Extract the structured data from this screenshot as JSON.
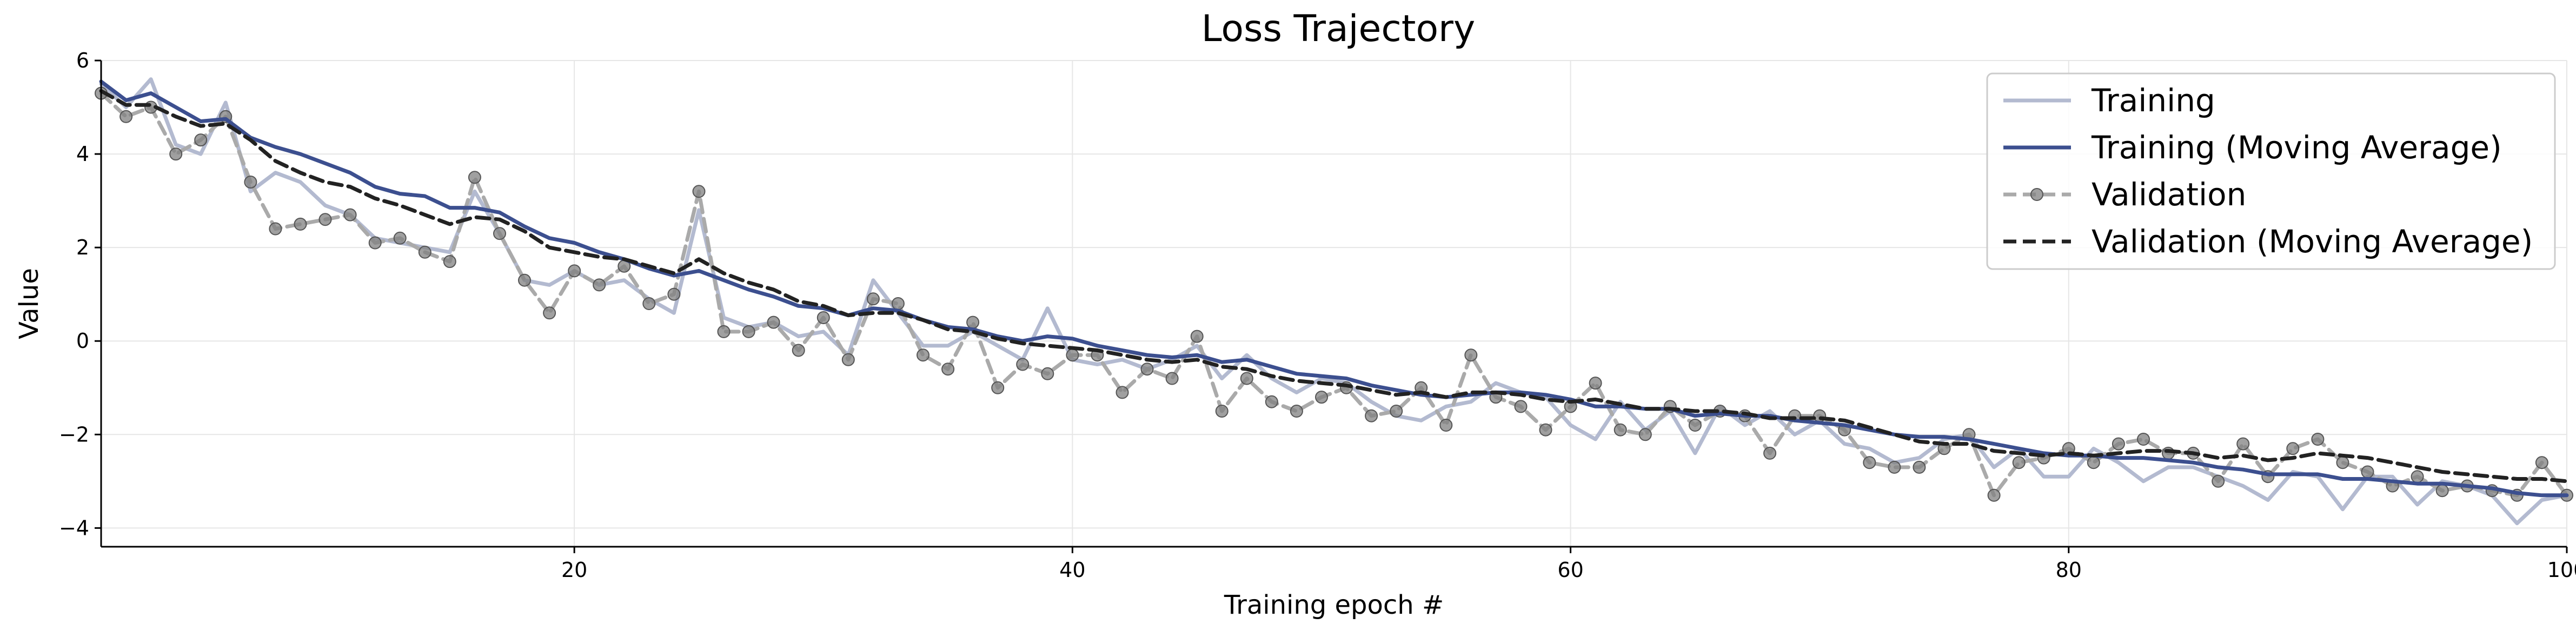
{
  "chart_data": {
    "type": "line",
    "title": "Loss Trajectory",
    "xlabel": "Training epoch #",
    "ylabel": "Value",
    "xlim": [
      1,
      100
    ],
    "ylim": [
      -4.4,
      6.0
    ],
    "xticks": [
      20,
      40,
      60,
      80,
      100
    ],
    "yticks": [
      -4,
      -2,
      0,
      2,
      4,
      6
    ],
    "grid": true,
    "legend_position": "top-right",
    "series": [
      {
        "name": "Training",
        "color": "#b3bad0",
        "style": "solid",
        "x": [
          1,
          2,
          3,
          4,
          5,
          6,
          7,
          8,
          9,
          10,
          11,
          12,
          13,
          14,
          15,
          16,
          17,
          18,
          19,
          20,
          21,
          22,
          23,
          24,
          25,
          26,
          27,
          28,
          29,
          30,
          31,
          32,
          33,
          34,
          35,
          36,
          37,
          38,
          39,
          40,
          41,
          42,
          43,
          44,
          45,
          46,
          47,
          48,
          49,
          50,
          51,
          52,
          53,
          54,
          55,
          56,
          57,
          58,
          59,
          60,
          61,
          62,
          63,
          64,
          65,
          66,
          67,
          68,
          69,
          70,
          71,
          72,
          73,
          74,
          75,
          76,
          77,
          78,
          79,
          80,
          81,
          82,
          83,
          84,
          85,
          86,
          87,
          88,
          89,
          90,
          91,
          92,
          93,
          94,
          95,
          96,
          97,
          98,
          99,
          100
        ],
        "values": [
          5.5,
          5.0,
          5.6,
          4.2,
          4.0,
          5.1,
          3.2,
          3.6,
          3.4,
          2.9,
          2.7,
          2.2,
          2.1,
          2.0,
          1.9,
          3.2,
          2.3,
          1.3,
          1.2,
          1.5,
          1.2,
          1.3,
          0.9,
          0.6,
          2.8,
          0.5,
          0.3,
          0.4,
          0.1,
          0.2,
          -0.3,
          1.3,
          0.6,
          -0.1,
          -0.1,
          0.2,
          -0.1,
          -0.4,
          0.7,
          -0.4,
          -0.5,
          -0.4,
          -0.6,
          -0.4,
          -0.1,
          -0.8,
          -0.3,
          -0.8,
          -1.1,
          -0.8,
          -0.9,
          -1.3,
          -1.6,
          -1.7,
          -1.4,
          -1.3,
          -0.9,
          -1.1,
          -1.2,
          -1.8,
          -2.1,
          -1.3,
          -1.9,
          -1.5,
          -2.4,
          -1.4,
          -1.8,
          -1.5,
          -2.0,
          -1.7,
          -2.2,
          -2.3,
          -2.6,
          -2.5,
          -2.1,
          -2.0,
          -2.7,
          -2.3,
          -2.9,
          -2.9,
          -2.3,
          -2.6,
          -3.0,
          -2.7,
          -2.7,
          -2.9,
          -3.1,
          -3.4,
          -2.8,
          -2.9,
          -3.6,
          -2.9,
          -2.9,
          -3.5,
          -3.0,
          -3.1,
          -3.3,
          -3.9,
          -3.4,
          -3.3
        ]
      },
      {
        "name": "Training (Moving Average)",
        "color": "#3c4f8f",
        "style": "solid",
        "x": [
          1,
          2,
          3,
          4,
          5,
          6,
          7,
          8,
          9,
          10,
          11,
          12,
          13,
          14,
          15,
          16,
          17,
          18,
          19,
          20,
          21,
          22,
          23,
          24,
          25,
          26,
          27,
          28,
          29,
          30,
          31,
          32,
          33,
          34,
          35,
          36,
          37,
          38,
          39,
          40,
          41,
          42,
          43,
          44,
          45,
          46,
          47,
          48,
          49,
          50,
          51,
          52,
          53,
          54,
          55,
          56,
          57,
          58,
          59,
          60,
          61,
          62,
          63,
          64,
          65,
          66,
          67,
          68,
          69,
          70,
          71,
          72,
          73,
          74,
          75,
          76,
          77,
          78,
          79,
          80,
          81,
          82,
          83,
          84,
          85,
          86,
          87,
          88,
          89,
          90,
          91,
          92,
          93,
          94,
          95,
          96,
          97,
          98,
          99,
          100
        ],
        "values": [
          5.55,
          5.15,
          5.3,
          5.0,
          4.7,
          4.75,
          4.35,
          4.15,
          4.0,
          3.8,
          3.6,
          3.3,
          3.15,
          3.1,
          2.85,
          2.85,
          2.75,
          2.45,
          2.2,
          2.1,
          1.9,
          1.75,
          1.55,
          1.4,
          1.5,
          1.3,
          1.1,
          0.95,
          0.75,
          0.7,
          0.55,
          0.7,
          0.65,
          0.45,
          0.3,
          0.25,
          0.1,
          0.0,
          0.1,
          0.05,
          -0.1,
          -0.2,
          -0.3,
          -0.35,
          -0.3,
          -0.45,
          -0.4,
          -0.55,
          -0.7,
          -0.75,
          -0.8,
          -0.95,
          -1.05,
          -1.15,
          -1.2,
          -1.15,
          -1.1,
          -1.1,
          -1.15,
          -1.25,
          -1.4,
          -1.4,
          -1.45,
          -1.45,
          -1.6,
          -1.55,
          -1.6,
          -1.6,
          -1.7,
          -1.75,
          -1.8,
          -1.9,
          -2.0,
          -2.05,
          -2.05,
          -2.1,
          -2.2,
          -2.3,
          -2.4,
          -2.45,
          -2.45,
          -2.5,
          -2.5,
          -2.55,
          -2.6,
          -2.7,
          -2.75,
          -2.85,
          -2.85,
          -2.85,
          -2.95,
          -2.95,
          -3.0,
          -3.05,
          -3.05,
          -3.1,
          -3.15,
          -3.25,
          -3.3,
          -3.3
        ]
      },
      {
        "name": "Validation",
        "color": "#aaaaaa",
        "marker_color": "#808080",
        "style": "dashed-markers",
        "x": [
          1,
          2,
          3,
          4,
          5,
          6,
          7,
          8,
          9,
          10,
          11,
          12,
          13,
          14,
          15,
          16,
          17,
          18,
          19,
          20,
          21,
          22,
          23,
          24,
          25,
          26,
          27,
          28,
          29,
          30,
          31,
          32,
          33,
          34,
          35,
          36,
          37,
          38,
          39,
          40,
          41,
          42,
          43,
          44,
          45,
          46,
          47,
          48,
          49,
          50,
          51,
          52,
          53,
          54,
          55,
          56,
          57,
          58,
          59,
          60,
          61,
          62,
          63,
          64,
          65,
          66,
          67,
          68,
          69,
          70,
          71,
          72,
          73,
          74,
          75,
          76,
          77,
          78,
          79,
          80,
          81,
          82,
          83,
          84,
          85,
          86,
          87,
          88,
          89,
          90,
          91,
          92,
          93,
          94,
          95,
          96,
          97,
          98,
          99,
          100
        ],
        "values": [
          5.3,
          4.8,
          5.0,
          4.0,
          4.3,
          4.8,
          3.4,
          2.4,
          2.5,
          2.6,
          2.7,
          2.1,
          2.2,
          1.9,
          1.7,
          3.5,
          2.3,
          1.3,
          0.6,
          1.5,
          1.2,
          1.6,
          0.8,
          1.0,
          3.2,
          0.2,
          0.2,
          0.4,
          -0.2,
          0.5,
          -0.4,
          0.9,
          0.8,
          -0.3,
          -0.6,
          0.4,
          -1.0,
          -0.5,
          -0.7,
          -0.3,
          -0.3,
          -1.1,
          -0.6,
          -0.8,
          0.1,
          -1.5,
          -0.8,
          -1.3,
          -1.5,
          -1.2,
          -1.0,
          -1.6,
          -1.5,
          -1.0,
          -1.8,
          -0.3,
          -1.2,
          -1.4,
          -1.9,
          -1.4,
          -0.9,
          -1.9,
          -2.0,
          -1.4,
          -1.8,
          -1.5,
          -1.6,
          -2.4,
          -1.6,
          -1.6,
          -1.9,
          -2.6,
          -2.7,
          -2.7,
          -2.3,
          -2.0,
          -3.3,
          -2.6,
          -2.5,
          -2.3,
          -2.6,
          -2.2,
          -2.1,
          -2.4,
          -2.4,
          -3.0,
          -2.2,
          -2.9,
          -2.3,
          -2.1,
          -2.6,
          -2.8,
          -3.1,
          -2.9,
          -3.2,
          -3.1,
          -3.2,
          -3.3,
          -2.6,
          -3.3
        ]
      },
      {
        "name": "Validation (Moving Average)",
        "color": "#222222",
        "style": "dashed",
        "x": [
          1,
          2,
          3,
          4,
          5,
          6,
          7,
          8,
          9,
          10,
          11,
          12,
          13,
          14,
          15,
          16,
          17,
          18,
          19,
          20,
          21,
          22,
          23,
          24,
          25,
          26,
          27,
          28,
          29,
          30,
          31,
          32,
          33,
          34,
          35,
          36,
          37,
          38,
          39,
          40,
          41,
          42,
          43,
          44,
          45,
          46,
          47,
          48,
          49,
          50,
          51,
          52,
          53,
          54,
          55,
          56,
          57,
          58,
          59,
          60,
          61,
          62,
          63,
          64,
          65,
          66,
          67,
          68,
          69,
          70,
          71,
          72,
          73,
          74,
          75,
          76,
          77,
          78,
          79,
          80,
          81,
          82,
          83,
          84,
          85,
          86,
          87,
          88,
          89,
          90,
          91,
          92,
          93,
          94,
          95,
          96,
          97,
          98,
          99,
          100
        ],
        "values": [
          5.35,
          5.05,
          5.05,
          4.8,
          4.6,
          4.65,
          4.3,
          3.85,
          3.6,
          3.4,
          3.3,
          3.05,
          2.9,
          2.7,
          2.5,
          2.65,
          2.6,
          2.35,
          2.0,
          1.9,
          1.8,
          1.75,
          1.6,
          1.45,
          1.75,
          1.45,
          1.25,
          1.1,
          0.85,
          0.75,
          0.55,
          0.6,
          0.6,
          0.45,
          0.25,
          0.2,
          0.05,
          -0.05,
          -0.1,
          -0.15,
          -0.2,
          -0.3,
          -0.4,
          -0.45,
          -0.4,
          -0.55,
          -0.6,
          -0.75,
          -0.85,
          -0.9,
          -0.95,
          -1.05,
          -1.15,
          -1.1,
          -1.2,
          -1.1,
          -1.1,
          -1.15,
          -1.25,
          -1.3,
          -1.25,
          -1.35,
          -1.45,
          -1.45,
          -1.5,
          -1.5,
          -1.55,
          -1.65,
          -1.65,
          -1.65,
          -1.7,
          -1.85,
          -2.0,
          -2.15,
          -2.2,
          -2.2,
          -2.35,
          -2.4,
          -2.45,
          -2.4,
          -2.45,
          -2.4,
          -2.35,
          -2.35,
          -2.4,
          -2.5,
          -2.45,
          -2.55,
          -2.5,
          -2.4,
          -2.45,
          -2.5,
          -2.6,
          -2.7,
          -2.8,
          -2.85,
          -2.9,
          -2.95,
          -2.95,
          -3.0
        ]
      }
    ]
  }
}
